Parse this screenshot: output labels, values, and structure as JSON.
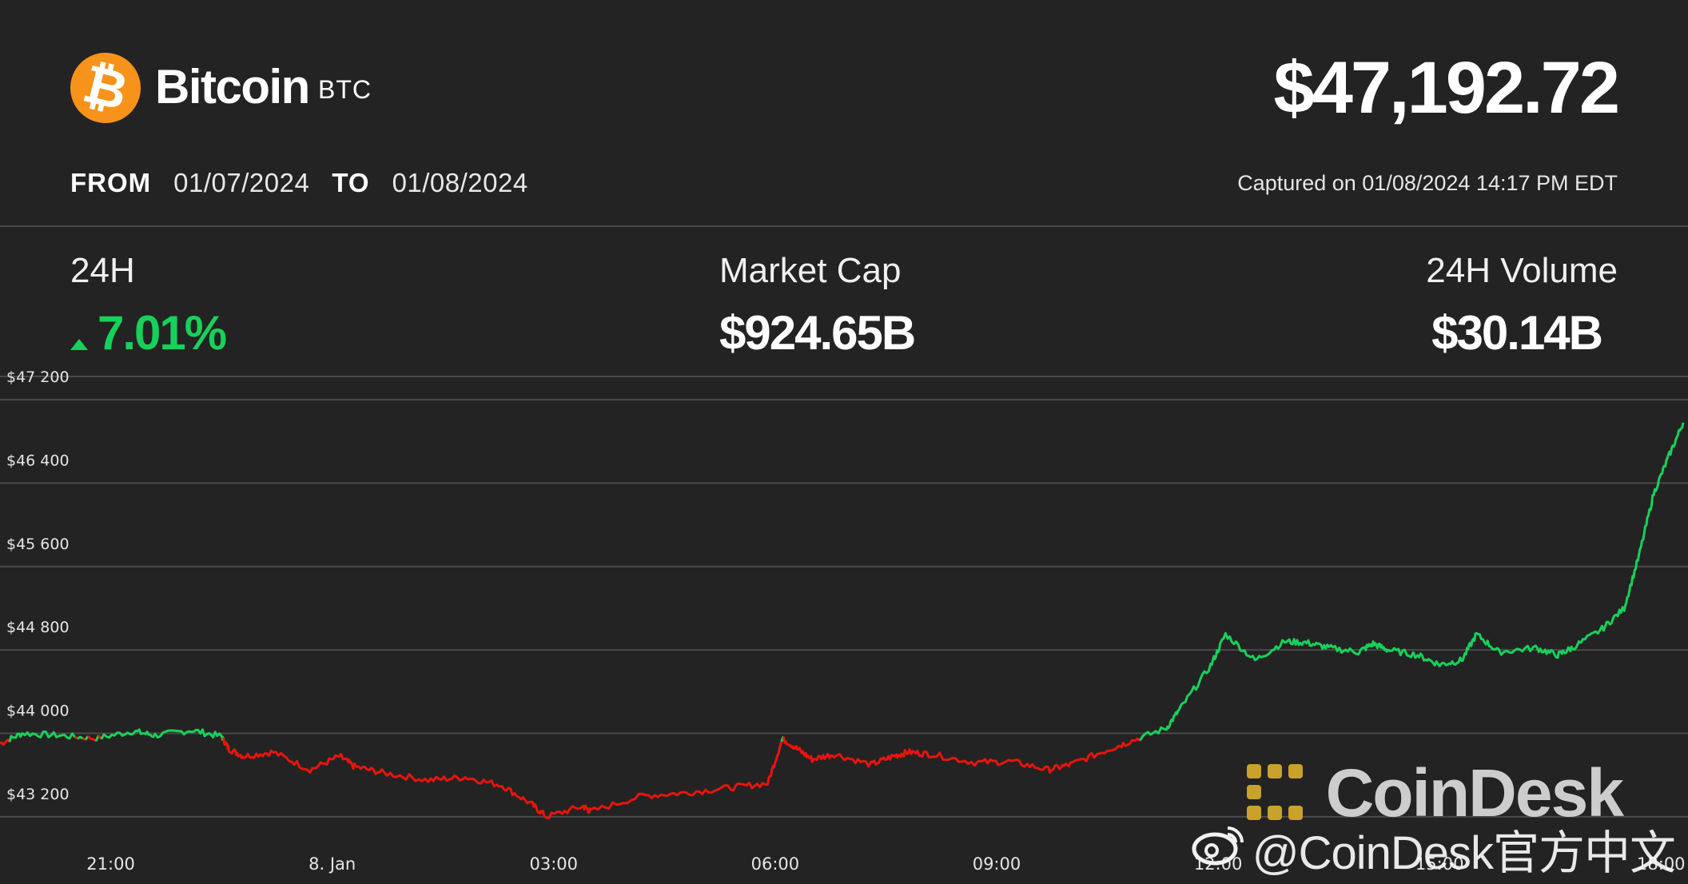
{
  "coin": {
    "icon": "bitcoin-icon",
    "logo_glyph": "₿",
    "name": "Bitcoin",
    "symbol": "BTC",
    "price": "$47,192.72",
    "brand_color": "#f7931a"
  },
  "range": {
    "from_label": "FROM",
    "from_date": "01/07/2024",
    "to_label": "TO",
    "to_date": "01/08/2024",
    "captured": "Captured on 01/08/2024 14:17 PM EDT"
  },
  "stats": {
    "change": {
      "label": "24H",
      "value": "7.01%",
      "direction": "up",
      "color": "#16d15a"
    },
    "market_cap": {
      "label": "Market Cap",
      "value": "$924.65B"
    },
    "volume": {
      "label": "24H Volume",
      "value": "$30.14B"
    }
  },
  "chart_data": {
    "type": "line",
    "title": "",
    "xlabel": "",
    "ylabel": "",
    "grid": true,
    "ylim": [
      42800,
      47400
    ],
    "y_ticks": [
      43200,
      44000,
      44800,
      45600,
      46400,
      47200
    ],
    "y_tick_labels": [
      "$43 200",
      "$44 000",
      "$44 800",
      "$45 600",
      "$46 400",
      "$47 200"
    ],
    "x_ticks": [
      "21:00",
      "8. Jan",
      "03:00",
      "06:00",
      "09:00",
      "12:00",
      "15:00",
      "18:00"
    ],
    "x_range_hours": [
      19.5,
      42.3
    ],
    "baseline": 43950,
    "colors": {
      "above": "#16d15a",
      "below": "#e8140d",
      "grid": "#4a4a4a"
    },
    "series": [
      {
        "x": [
          19.5,
          19.8,
          20.3,
          20.8,
          21.3,
          21.6,
          22.1,
          22.5,
          22.6,
          22.8,
          23.2,
          23.7,
          24.1,
          24.3,
          24.7,
          25.3,
          25.8,
          26.3,
          26.7,
          26.9,
          27.4,
          27.5,
          28.2,
          28.8,
          29.4,
          29.9,
          30.1,
          30.3,
          30.5,
          30.8,
          31.3,
          31.6,
          31.8,
          32.1,
          32.7,
          33.2,
          33.7,
          34.0,
          34.5,
          34.8,
          35.3,
          35.5,
          35.9,
          36.1,
          36.5,
          36.9,
          37.2,
          37.5,
          37.9,
          38.1,
          38.3,
          38.7,
          39.0,
          39.3,
          39.5,
          39.8,
          40.3,
          40.6,
          40.8,
          41.2,
          41.5,
          41.7,
          41.9,
          42.1,
          42.3
        ],
        "y": [
          43900,
          44000,
          43980,
          43950,
          44020,
          43980,
          44030,
          43970,
          43850,
          43780,
          43820,
          43650,
          43780,
          43680,
          43620,
          43550,
          43580,
          43500,
          43320,
          43200,
          43300,
          43250,
          43400,
          43430,
          43480,
          43520,
          43950,
          43850,
          43750,
          43800,
          43700,
          43780,
          43820,
          43800,
          43720,
          43730,
          43650,
          43700,
          43840,
          43920,
          44050,
          44250,
          44650,
          44950,
          44700,
          44880,
          44870,
          44820,
          44780,
          44860,
          44800,
          44750,
          44660,
          44700,
          44950,
          44780,
          44820,
          44750,
          44820,
          45000,
          45200,
          45700,
          46300,
          46650,
          46980
        ]
      }
    ]
  },
  "watermark": {
    "brand": "CoinDesk",
    "weibo": "@CoinDesk官方中文",
    "brand_color": "#c8a22a"
  }
}
